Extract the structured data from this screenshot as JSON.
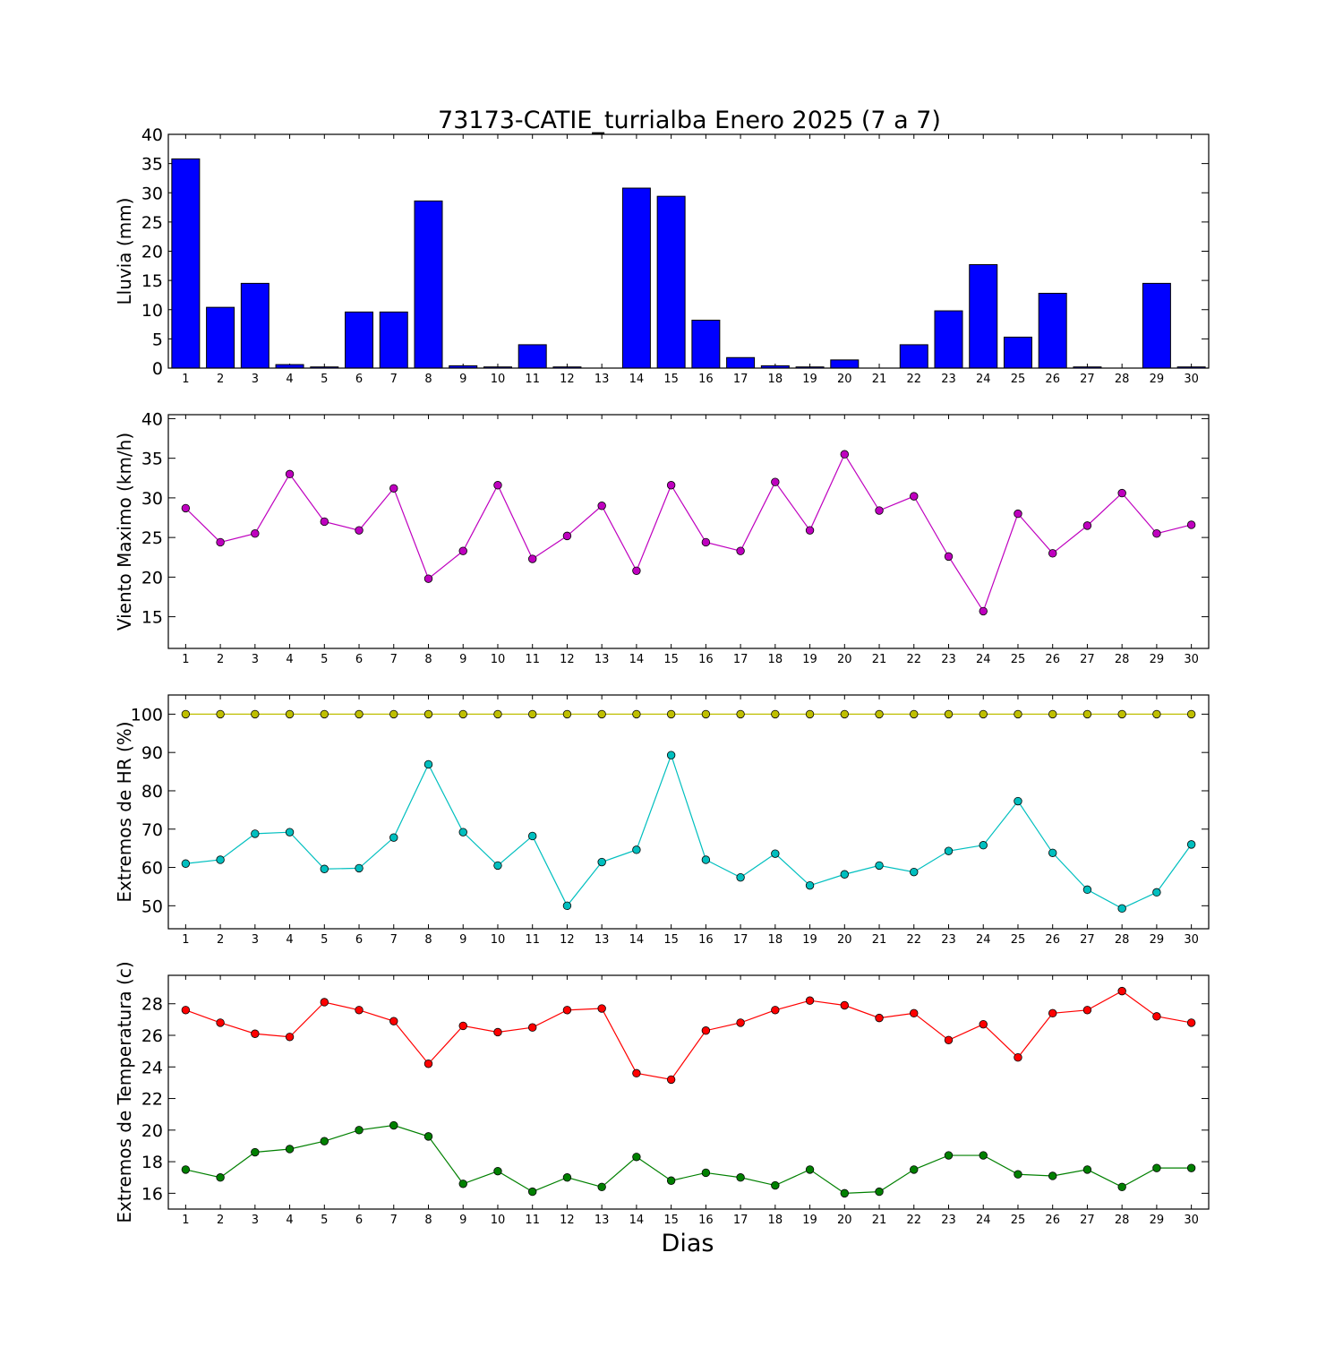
{
  "figure": {
    "title": "73173-CATIE_turrialba Enero 2025  (7 a 7)",
    "xlabel": "Dias"
  },
  "chart_data": [
    {
      "type": "bar",
      "ylabel": "Lluvia (mm)",
      "ylim": [
        0,
        40
      ],
      "yticks": [
        0,
        5,
        10,
        15,
        20,
        25,
        30,
        35,
        40
      ],
      "categories": [
        1,
        2,
        3,
        4,
        5,
        6,
        7,
        8,
        9,
        10,
        11,
        12,
        13,
        14,
        15,
        16,
        17,
        18,
        19,
        20,
        21,
        22,
        23,
        24,
        25,
        26,
        27,
        28,
        29,
        30
      ],
      "series": [
        {
          "color": "#0000ff",
          "values": [
            35.8,
            10.4,
            14.5,
            0.6,
            0.2,
            9.6,
            9.6,
            28.6,
            0.4,
            0.2,
            4.0,
            0.2,
            0,
            30.8,
            29.4,
            8.2,
            1.8,
            0.4,
            0.2,
            1.4,
            0,
            4.0,
            9.8,
            17.7,
            5.3,
            12.8,
            0.2,
            0,
            14.5,
            0.2
          ]
        }
      ]
    },
    {
      "type": "line",
      "ylabel": "Viento Maximo (km/h)",
      "ylim": [
        11,
        40.5
      ],
      "yticks": [
        15,
        20,
        25,
        30,
        35,
        40
      ],
      "x": [
        1,
        2,
        3,
        4,
        5,
        6,
        7,
        8,
        9,
        10,
        11,
        12,
        13,
        14,
        15,
        16,
        17,
        18,
        19,
        20,
        21,
        22,
        23,
        24,
        25,
        26,
        27,
        28,
        29,
        30
      ],
      "series": [
        {
          "color": "#bf00bf",
          "values": [
            28.7,
            24.4,
            25.5,
            33.0,
            27.0,
            25.9,
            31.2,
            19.8,
            23.3,
            31.6,
            22.3,
            25.2,
            29.0,
            20.8,
            31.6,
            24.4,
            23.3,
            32.0,
            25.9,
            35.5,
            28.4,
            30.2,
            22.6,
            15.7,
            28.0,
            23.0,
            26.5,
            30.6,
            25.5,
            26.6
          ]
        }
      ]
    },
    {
      "type": "line",
      "ylabel": "Extremos de HR (%)",
      "ylim": [
        44,
        105
      ],
      "yticks": [
        50,
        60,
        70,
        80,
        90,
        100
      ],
      "x": [
        1,
        2,
        3,
        4,
        5,
        6,
        7,
        8,
        9,
        10,
        11,
        12,
        13,
        14,
        15,
        16,
        17,
        18,
        19,
        20,
        21,
        22,
        23,
        24,
        25,
        26,
        27,
        28,
        29,
        30
      ],
      "series": [
        {
          "color": "#bfbf00",
          "values": [
            100,
            100,
            100,
            100,
            100,
            100,
            100,
            100,
            100,
            100,
            100,
            100,
            100,
            100,
            100,
            100,
            100,
            100,
            100,
            100,
            100,
            100,
            100,
            100,
            100,
            100,
            100,
            100,
            100,
            100
          ]
        },
        {
          "color": "#00bfbf",
          "values": [
            61.0,
            62.0,
            68.8,
            69.2,
            59.6,
            59.8,
            67.8,
            86.9,
            69.2,
            60.5,
            68.2,
            50.0,
            61.4,
            64.6,
            89.3,
            62.0,
            57.4,
            63.6,
            55.3,
            58.2,
            60.5,
            58.8,
            64.3,
            65.8,
            77.3,
            63.8,
            54.2,
            49.3,
            53.5,
            66.0
          ]
        }
      ]
    },
    {
      "type": "line",
      "ylabel": "Extremos de Temperatura (c)",
      "ylim": [
        15,
        29.8
      ],
      "yticks": [
        16,
        18,
        20,
        22,
        24,
        26,
        28
      ],
      "x": [
        1,
        2,
        3,
        4,
        5,
        6,
        7,
        8,
        9,
        10,
        11,
        12,
        13,
        14,
        15,
        16,
        17,
        18,
        19,
        20,
        21,
        22,
        23,
        24,
        25,
        26,
        27,
        28,
        29,
        30
      ],
      "series": [
        {
          "color": "#ff0000",
          "values": [
            27.6,
            26.8,
            26.1,
            25.9,
            28.1,
            27.6,
            26.9,
            24.2,
            26.6,
            26.2,
            26.5,
            27.6,
            27.7,
            23.6,
            23.2,
            26.3,
            26.8,
            27.6,
            28.2,
            27.9,
            27.1,
            27.4,
            25.7,
            26.7,
            24.6,
            27.4,
            27.6,
            28.8,
            27.2,
            26.8
          ]
        },
        {
          "color": "#008000",
          "values": [
            17.5,
            17.0,
            18.6,
            18.8,
            19.3,
            20.0,
            20.3,
            19.6,
            16.6,
            17.4,
            16.1,
            17.0,
            16.4,
            18.3,
            16.8,
            17.3,
            17.0,
            16.5,
            17.5,
            16.0,
            16.1,
            17.5,
            18.4,
            18.4,
            17.2,
            17.1,
            17.5,
            16.4,
            17.6,
            17.6
          ]
        }
      ]
    }
  ]
}
